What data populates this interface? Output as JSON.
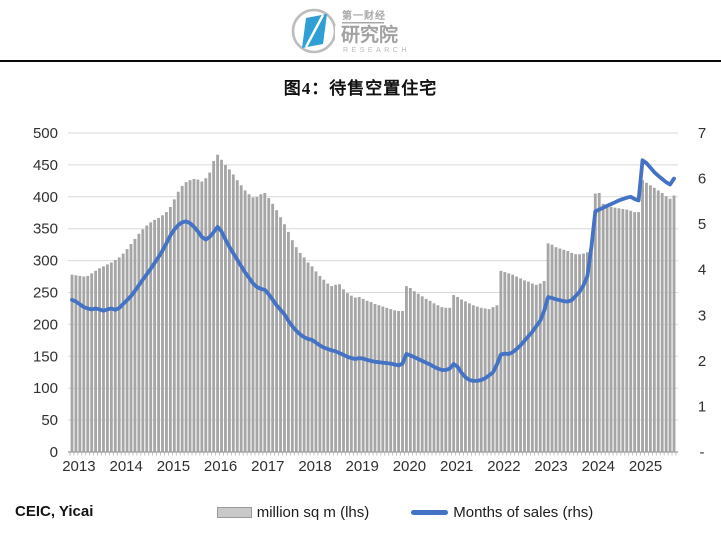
{
  "title": "图4：待售空置住宅",
  "source": "CEIC, Yicai",
  "logo": {
    "line1": "第一财经",
    "line2": "研究院",
    "line3": "RESEARCH",
    "blue": "#2f9fd6",
    "gray": "#b5b5b5"
  },
  "legend": [
    {
      "label": "million sq m (lhs)",
      "type": "bar",
      "color": "#c9c9c9",
      "border": "#9b9b9b"
    },
    {
      "label": "Months of sales (rhs)",
      "type": "line",
      "color": "#4472c4"
    }
  ],
  "chart_data": {
    "type": "bar+line",
    "title": "图4：待售空置住宅",
    "grid": true,
    "grid_color": "#d9d9d9",
    "axis_line_color": "#9a9a9a",
    "tick_color": "#b0b0b0",
    "label_color": "#303030",
    "left_axis": {
      "min": 0,
      "max": 500,
      "step": 50,
      "labels": [
        "0",
        "50",
        "100",
        "150",
        "200",
        "250",
        "300",
        "350",
        "400",
        "450",
        "500"
      ]
    },
    "right_axis": {
      "min": 0,
      "max": 7,
      "step": 1,
      "labels_bottom_to_top": [
        "-",
        "1",
        "2",
        "3",
        "4",
        "5",
        "6",
        "7"
      ]
    },
    "x_tick_labels": [
      "2013",
      "2014",
      "2015",
      "2016",
      "2017",
      "2018",
      "2019",
      "2020",
      "2021",
      "2022",
      "2023",
      "2024",
      "2025"
    ],
    "categories": [
      "2013-01",
      "2013-02",
      "2013-03",
      "2013-04",
      "2013-05",
      "2013-06",
      "2013-07",
      "2013-08",
      "2013-09",
      "2013-10",
      "2013-11",
      "2013-12",
      "2014-01",
      "2014-02",
      "2014-03",
      "2014-04",
      "2014-05",
      "2014-06",
      "2014-07",
      "2014-08",
      "2014-09",
      "2014-10",
      "2014-11",
      "2014-12",
      "2015-01",
      "2015-02",
      "2015-03",
      "2015-04",
      "2015-05",
      "2015-06",
      "2015-07",
      "2015-08",
      "2015-09",
      "2015-10",
      "2015-11",
      "2015-12",
      "2016-01",
      "2016-02",
      "2016-03",
      "2016-04",
      "2016-05",
      "2016-06",
      "2016-07",
      "2016-08",
      "2016-09",
      "2016-10",
      "2016-11",
      "2016-12",
      "2017-01",
      "2017-02",
      "2017-03",
      "2017-04",
      "2017-05",
      "2017-06",
      "2017-07",
      "2017-08",
      "2017-09",
      "2017-10",
      "2017-11",
      "2017-12",
      "2018-01",
      "2018-02",
      "2018-03",
      "2018-04",
      "2018-05",
      "2018-06",
      "2018-07",
      "2018-08",
      "2018-09",
      "2018-10",
      "2018-11",
      "2018-12",
      "2019-01",
      "2019-02",
      "2019-03",
      "2019-04",
      "2019-05",
      "2019-06",
      "2019-07",
      "2019-08",
      "2019-09",
      "2019-10",
      "2019-11",
      "2019-12",
      "2020-01",
      "2020-02",
      "2020-03",
      "2020-04",
      "2020-05",
      "2020-06",
      "2020-07",
      "2020-08",
      "2020-09",
      "2020-10",
      "2020-11",
      "2020-12",
      "2021-01",
      "2021-02",
      "2021-03",
      "2021-04",
      "2021-05",
      "2021-06",
      "2021-07",
      "2021-08",
      "2021-09",
      "2021-10",
      "2021-11",
      "2021-12",
      "2022-01",
      "2022-02",
      "2022-03",
      "2022-04",
      "2022-05",
      "2022-06",
      "2022-07",
      "2022-08",
      "2022-09",
      "2022-10",
      "2022-11",
      "2022-12",
      "2023-01",
      "2023-02",
      "2023-03",
      "2023-04",
      "2023-05",
      "2023-06",
      "2023-07",
      "2023-08",
      "2023-09",
      "2023-10",
      "2023-11",
      "2023-12",
      "2024-01",
      "2024-02",
      "2024-03",
      "2024-04",
      "2024-05",
      "2024-06",
      "2024-07",
      "2024-08",
      "2024-09",
      "2024-10",
      "2024-11",
      "2024-12",
      "2025-01",
      "2025-02",
      "2025-03",
      "2025-04",
      "2025-05",
      "2025-06",
      "2025-07",
      "2025-08",
      "2025-09",
      "2025-10"
    ],
    "series": [
      {
        "name": "million sq m (lhs)",
        "type": "bar",
        "axis": "left",
        "color": "#a6a6a6",
        "values": [
          278,
          277,
          276,
          275,
          276,
          280,
          284,
          288,
          291,
          294,
          297,
          301,
          305,
          311,
          318,
          326,
          334,
          342,
          349,
          355,
          360,
          364,
          367,
          371,
          376,
          384,
          396,
          408,
          417,
          423,
          426,
          428,
          427,
          424,
          429,
          438,
          456,
          466,
          458,
          450,
          443,
          435,
          426,
          418,
          410,
          404,
          399,
          400,
          404,
          406,
          398,
          389,
          379,
          368,
          357,
          345,
          332,
          321,
          312,
          305,
          297,
          291,
          283,
          276,
          270,
          264,
          260,
          262,
          263,
          255,
          249,
          245,
          242,
          243,
          240,
          237,
          235,
          232,
          230,
          228,
          226,
          224,
          222,
          221,
          221,
          260,
          257,
          252,
          248,
          244,
          240,
          237,
          233,
          230,
          227,
          226,
          226,
          246,
          243,
          239,
          236,
          233,
          230,
          228,
          226,
          225,
          224,
          227,
          230,
          284,
          282,
          280,
          278,
          275,
          272,
          269,
          267,
          264,
          262,
          264,
          268,
          327,
          325,
          321,
          319,
          317,
          315,
          312,
          310,
          310,
          311,
          313,
          315,
          405,
          406,
          389,
          386,
          384,
          383,
          382,
          381,
          380,
          378,
          376,
          376,
          426,
          422,
          418,
          414,
          410,
          406,
          401,
          397,
          402
        ]
      },
      {
        "name": "Months of sales (rhs)",
        "type": "line",
        "axis": "right",
        "color": "#4472c4",
        "values": [
          3.34,
          3.3,
          3.24,
          3.18,
          3.15,
          3.13,
          3.15,
          3.13,
          3.1,
          3.13,
          3.15,
          3.12,
          3.16,
          3.25,
          3.33,
          3.42,
          3.54,
          3.66,
          3.78,
          3.9,
          4.02,
          4.15,
          4.28,
          4.42,
          4.58,
          4.75,
          4.88,
          4.98,
          5.04,
          5.06,
          5.02,
          4.94,
          4.84,
          4.72,
          4.66,
          4.72,
          4.82,
          4.94,
          4.84,
          4.66,
          4.5,
          4.36,
          4.22,
          4.08,
          3.94,
          3.82,
          3.7,
          3.62,
          3.58,
          3.56,
          3.46,
          3.34,
          3.22,
          3.12,
          3.02,
          2.88,
          2.76,
          2.66,
          2.58,
          2.52,
          2.48,
          2.46,
          2.4,
          2.34,
          2.29,
          2.26,
          2.23,
          2.21,
          2.17,
          2.13,
          2.09,
          2.06,
          2.04,
          2.06,
          2.05,
          2.02,
          2.0,
          1.98,
          1.97,
          1.96,
          1.95,
          1.94,
          1.92,
          1.9,
          1.94,
          2.15,
          2.12,
          2.08,
          2.04,
          2.0,
          1.96,
          1.92,
          1.87,
          1.83,
          1.8,
          1.8,
          1.83,
          1.93,
          1.87,
          1.74,
          1.64,
          1.58,
          1.56,
          1.56,
          1.58,
          1.62,
          1.68,
          1.75,
          1.92,
          2.14,
          2.16,
          2.15,
          2.19,
          2.26,
          2.34,
          2.44,
          2.54,
          2.64,
          2.76,
          2.88,
          3.1,
          3.4,
          3.38,
          3.35,
          3.33,
          3.31,
          3.3,
          3.33,
          3.42,
          3.52,
          3.66,
          3.86,
          4.5,
          5.28,
          5.32,
          5.36,
          5.4,
          5.44,
          5.48,
          5.52,
          5.55,
          5.58,
          5.6,
          5.55,
          5.52,
          6.4,
          6.34,
          6.24,
          6.14,
          6.06,
          5.99,
          5.92,
          5.87,
          6.0
        ]
      }
    ]
  }
}
